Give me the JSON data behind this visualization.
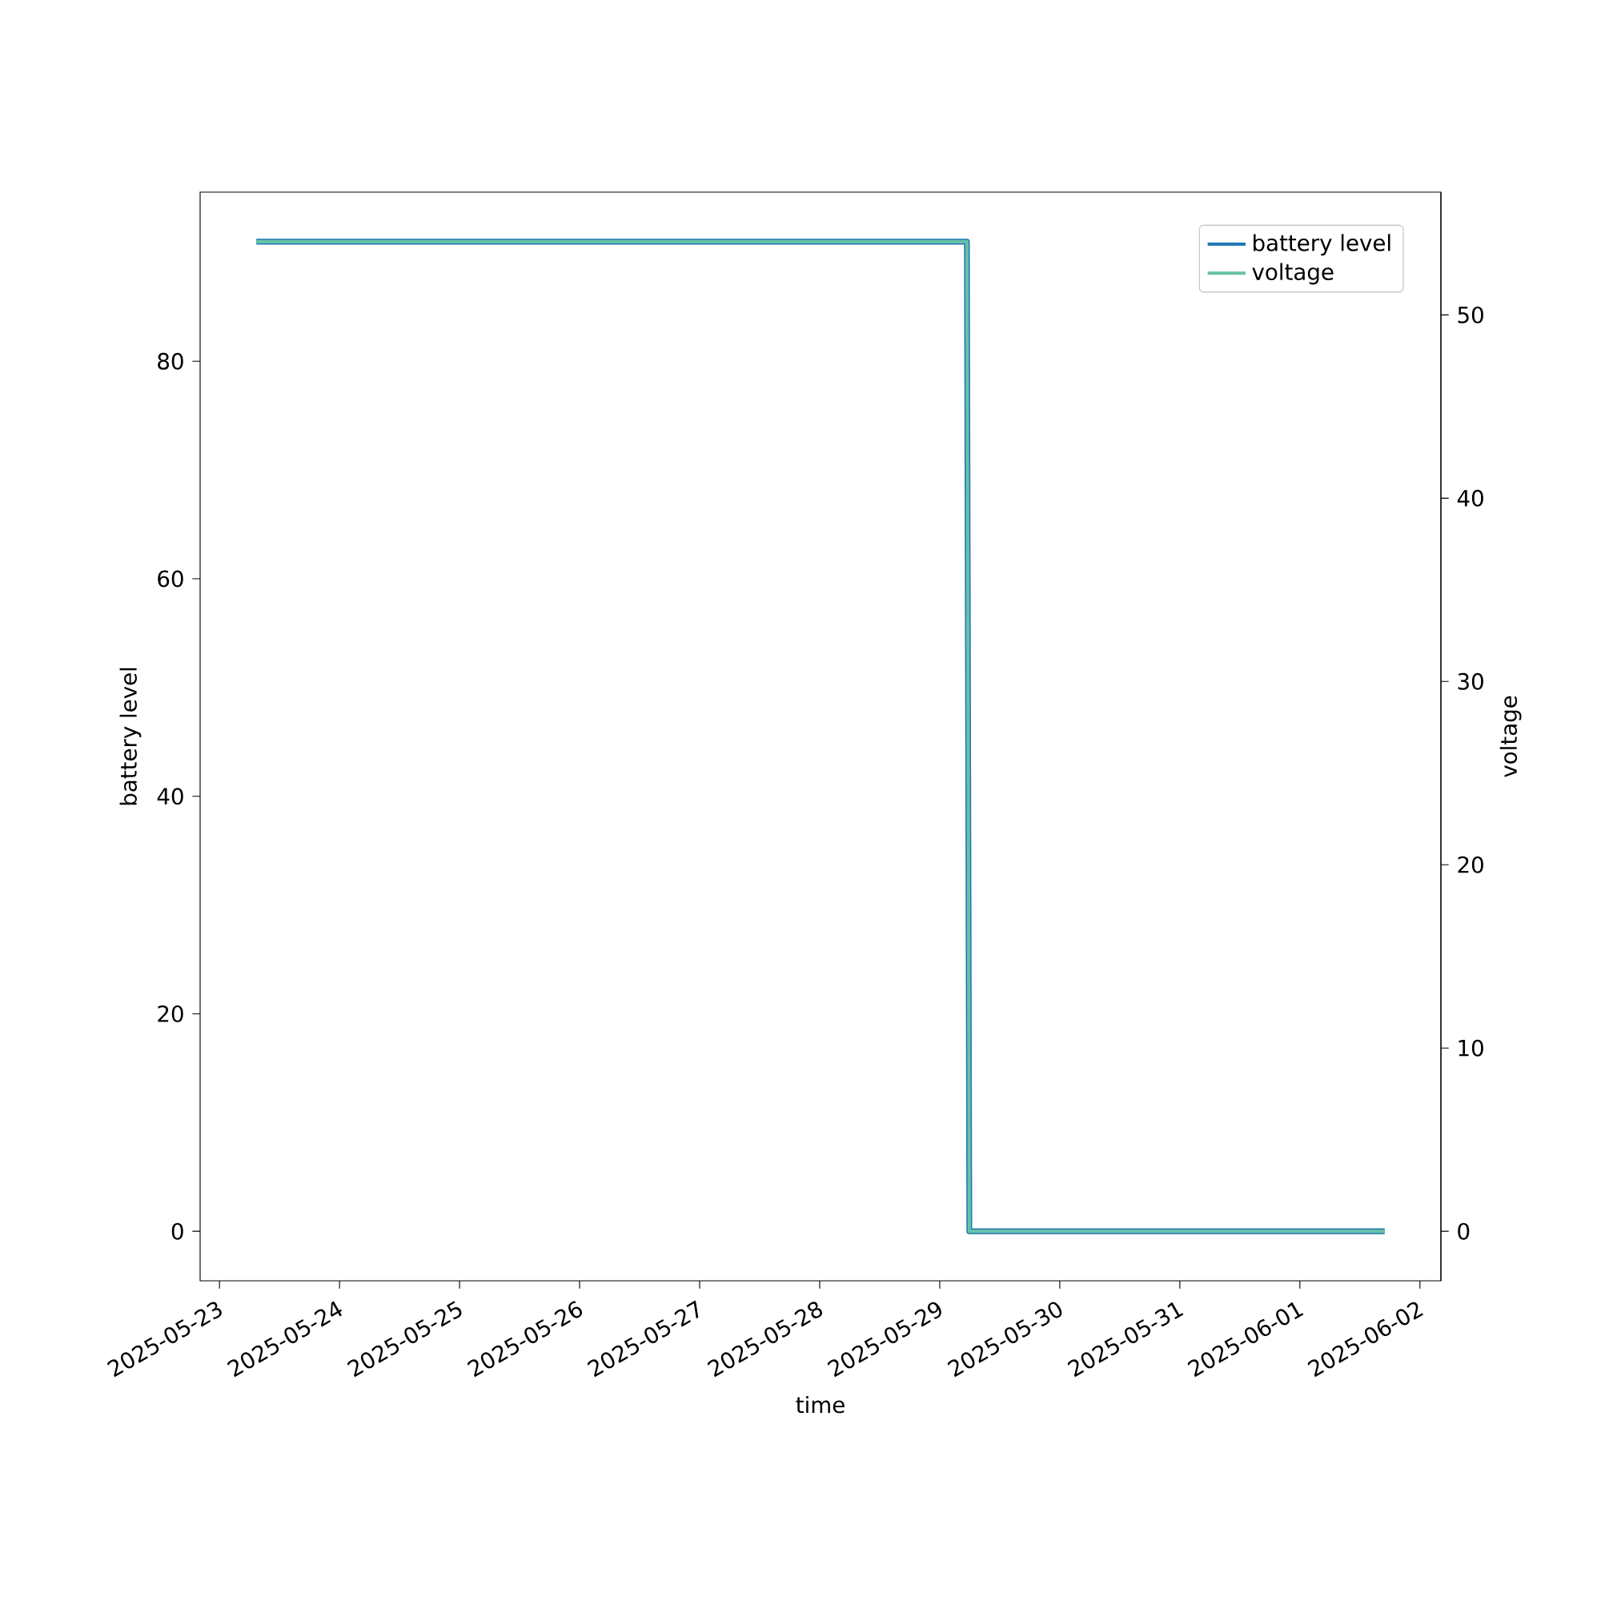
{
  "chart_data": {
    "type": "line",
    "xlabel": "time",
    "ylabel": "battery level",
    "y2label": "voltage",
    "x": [
      "2025-05-23T07:22",
      "2025-05-29T05:26",
      "2025-05-29T05:55",
      "2025-06-01T16:58"
    ],
    "series": [
      {
        "name": "battery level",
        "color": "#1f77b4",
        "values": [
          91,
          91,
          0,
          0
        ]
      },
      {
        "name": "voltage",
        "color": "#66c2a5",
        "axis": "y2",
        "values": [
          54,
          54,
          0,
          0
        ]
      }
    ],
    "xlim": [
      "2025-05-22T20:08",
      "2025-06-02T04:12"
    ],
    "xticks": [
      "2025-05-23",
      "2025-05-24",
      "2025-05-25",
      "2025-05-26",
      "2025-05-27",
      "2025-05-28",
      "2025-05-29",
      "2025-05-30",
      "2025-05-31",
      "2025-06-01",
      "2025-06-02"
    ],
    "ylim": [
      -4.55,
      95.55
    ],
    "yticks": [
      0,
      20,
      40,
      60,
      80
    ],
    "y2lim": [
      -2.7,
      56.7
    ],
    "y2ticks": [
      0,
      10,
      20,
      30,
      40,
      50
    ],
    "legend": "top right"
  }
}
